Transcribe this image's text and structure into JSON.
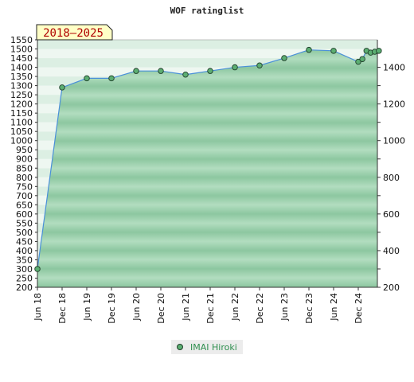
{
  "chart_data": {
    "type": "area",
    "title": "WOF ratinglist",
    "badge": "2018–2025",
    "x_tick_labels": [
      "Jun 18",
      "Dec 18",
      "Jun 19",
      "Dec 19",
      "Jun 20",
      "Dec 20",
      "Jun 21",
      "Dec 21",
      "Jun 22",
      "Dec 22",
      "Jun 23",
      "Dec 23",
      "Jun 24",
      "Dec 24"
    ],
    "y_left": {
      "min": 200,
      "max": 1550,
      "step": 50
    },
    "y_right": {
      "min": 200,
      "max": 1550,
      "ticks": [
        200,
        400,
        600,
        800,
        1000,
        1200,
        1400
      ]
    },
    "grid": true,
    "legend_position": "bottom",
    "colors": {
      "fill": "#8cc9a0",
      "band_dark": "#7dbf93",
      "band_light": "#a9d9b8",
      "line": "#4a90d9",
      "marker": "#5cae72",
      "marker_edge": "#1f3f2a",
      "badge_bg": "#ffffc6"
    },
    "series": [
      {
        "name": "IMAI Hiroki",
        "points": [
          {
            "x": "2018-06",
            "y": 300
          },
          {
            "x": "2018-12",
            "y": 1290
          },
          {
            "x": "2019-06",
            "y": 1340
          },
          {
            "x": "2019-12",
            "y": 1340
          },
          {
            "x": "2020-06",
            "y": 1380
          },
          {
            "x": "2020-12",
            "y": 1380
          },
          {
            "x": "2021-06",
            "y": 1360
          },
          {
            "x": "2021-12",
            "y": 1380
          },
          {
            "x": "2022-06",
            "y": 1400
          },
          {
            "x": "2022-12",
            "y": 1410
          },
          {
            "x": "2023-06",
            "y": 1450
          },
          {
            "x": "2023-12",
            "y": 1495
          },
          {
            "x": "2024-06",
            "y": 1490
          },
          {
            "x": "2024-12",
            "y": 1430
          },
          {
            "x": "2025-01",
            "y": 1445
          },
          {
            "x": "2025-02",
            "y": 1490
          },
          {
            "x": "2025-03",
            "y": 1480
          },
          {
            "x": "2025-04",
            "y": 1485
          },
          {
            "x": "2025-05",
            "y": 1490
          }
        ]
      }
    ]
  }
}
